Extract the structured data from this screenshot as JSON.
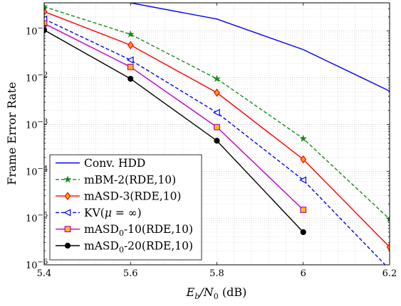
{
  "chart_data": {
    "type": "line",
    "title": "",
    "xlabel": {
      "main": "E",
      "sub": "b",
      "sep": "/N",
      "sub2": "0",
      "unit": " (dB)"
    },
    "ylabel": "Frame Error Rate",
    "xlim": [
      5.4,
      6.2
    ],
    "ylim": [
      1e-06,
      0.4
    ],
    "yscale": "log",
    "grid": "on (major and minor, dotted)",
    "legend_placement": "bottom-left",
    "x_ticks": [
      {
        "value": 5.4,
        "label": "5.4"
      },
      {
        "value": 5.6,
        "label": "5.6"
      },
      {
        "value": 5.8,
        "label": "5.8"
      },
      {
        "value": 6.0,
        "label": "6"
      },
      {
        "value": 6.2,
        "label": "6.2"
      }
    ],
    "y_ticks": [
      {
        "value": 1e-06,
        "base": "10",
        "exp": "−6"
      },
      {
        "value": 1e-05,
        "base": "10",
        "exp": "−5"
      },
      {
        "value": 0.0001,
        "base": "10",
        "exp": "−4"
      },
      {
        "value": 0.001,
        "base": "10",
        "exp": "−3"
      },
      {
        "value": 0.01,
        "base": "10",
        "exp": "−2"
      },
      {
        "value": 0.1,
        "base": "10",
        "exp": "−1"
      }
    ],
    "series": [
      {
        "name": "Conv. HDD",
        "color": "#0000ff",
        "dash": "solid",
        "marker": "none",
        "x": [
          5.4,
          5.6,
          5.8,
          6.0,
          6.2
        ],
        "y": [
          0.7,
          0.4,
          0.18,
          0.04,
          0.0052
        ]
      },
      {
        "name": "mBM-2(RDE,10)",
        "color": "#1a8a1a",
        "dash": "dashed",
        "marker": "star",
        "x": [
          5.4,
          5.6,
          5.8,
          6.0,
          6.2
        ],
        "y": [
          0.33,
          0.085,
          0.0095,
          0.0005,
          9.5e-06
        ]
      },
      {
        "name": "mASD-3(RDE,10)",
        "color": "#ff0000",
        "dash": "solid",
        "marker": "diamond",
        "x": [
          5.4,
          5.6,
          5.8,
          6.0,
          6.2
        ],
        "y": [
          0.26,
          0.05,
          0.0048,
          0.00018,
          2.4e-06
        ]
      },
      {
        "name": "KV(μ = ∞)",
        "name_parts": {
          "pre": "KV(",
          "mu": "μ",
          "post": " = ∞)"
        },
        "color": "#0000ff",
        "dash": "dashed",
        "marker": "triangle-left",
        "x": [
          5.4,
          5.6,
          5.8,
          6.0,
          6.2
        ],
        "y": [
          0.18,
          0.024,
          0.0018,
          6.5e-05,
          8e-07
        ]
      },
      {
        "name": "mASD0-10(RDE,10)",
        "name_parts": {
          "pre": "mASD",
          "sub": "0",
          "post": "-10(RDE,10)"
        },
        "color": "#bf00bf",
        "dash": "solid",
        "marker": "square",
        "x": [
          5.4,
          5.6,
          5.8,
          6.0
        ],
        "y": [
          0.145,
          0.017,
          0.00088,
          1.5e-05
        ]
      },
      {
        "name": "mASD0-20(RDE,10)",
        "name_parts": {
          "pre": "mASD",
          "sub": "0",
          "post": "-20(RDE,10)"
        },
        "color": "#000000",
        "dash": "solid",
        "marker": "circle",
        "x": [
          5.4,
          5.6,
          5.8,
          6.0
        ],
        "y": [
          0.105,
          0.0095,
          0.00045,
          5e-06
        ]
      }
    ]
  }
}
